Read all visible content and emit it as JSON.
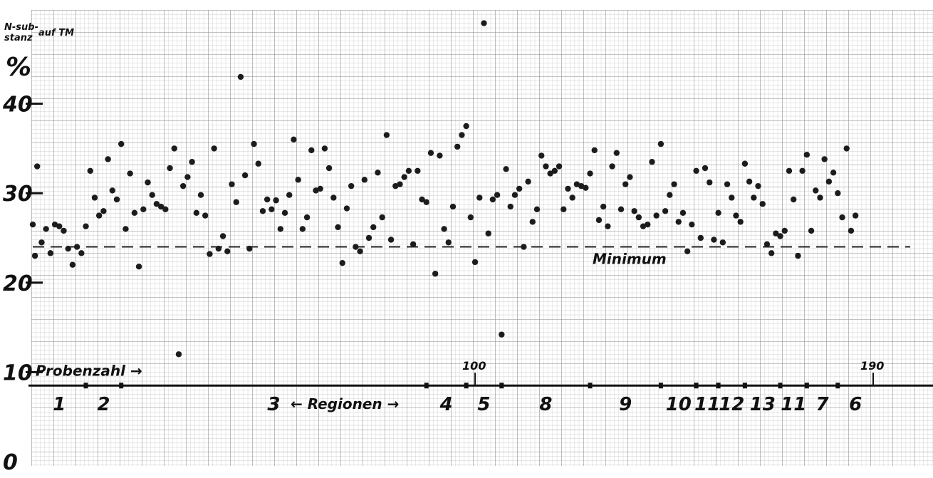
{
  "chart_data": {
    "type": "scatter",
    "ylabel": "N-sub-stanz % auf TM",
    "y_unit": "%",
    "ylim": [
      0,
      50
    ],
    "yticks": [
      {
        "value": 0,
        "label": "0"
      },
      {
        "value": 10,
        "label": "10"
      },
      {
        "value": 20,
        "label": "20"
      },
      {
        "value": 30,
        "label": "30"
      },
      {
        "value": 40,
        "label": "40"
      }
    ],
    "xlabel": "Probenzahl →",
    "xlim": [
      0,
      190
    ],
    "xticks": [
      {
        "value": 100,
        "label": "100"
      },
      {
        "value": 190,
        "label": "190"
      }
    ],
    "minimum": {
      "value": 24.0,
      "label": "Minimum"
    },
    "regions_arrow_label": "← Regionen →",
    "regions": [
      {
        "label": "1",
        "start": 0,
        "end": 12
      },
      {
        "label": "2",
        "start": 12,
        "end": 20
      },
      {
        "label": "3",
        "start": 20,
        "end": 89
      },
      {
        "label": "4",
        "start": 89,
        "end": 98
      },
      {
        "label": "5",
        "start": 98,
        "end": 106
      },
      {
        "label": "8",
        "start": 106,
        "end": 126
      },
      {
        "label": "9",
        "start": 126,
        "end": 142
      },
      {
        "label": "10",
        "start": 142,
        "end": 150
      },
      {
        "label": "11",
        "start": 150,
        "end": 155
      },
      {
        "label": "12",
        "start": 155,
        "end": 161
      },
      {
        "label": "13",
        "start": 161,
        "end": 169
      },
      {
        "label": "11",
        "start": 169,
        "end": 175
      },
      {
        "label": "7",
        "start": 175,
        "end": 182
      },
      {
        "label": "6",
        "start": 182,
        "end": 190
      }
    ],
    "series": [
      {
        "points": [
          [
            0,
            26.5
          ],
          [
            0.5,
            23
          ],
          [
            1,
            33
          ],
          [
            2,
            24.5
          ],
          [
            3,
            26
          ],
          [
            4,
            23.3
          ],
          [
            5,
            26.5
          ],
          [
            6,
            26.3
          ],
          [
            7,
            25.8
          ],
          [
            8,
            23.8
          ],
          [
            9,
            22
          ],
          [
            10,
            24
          ],
          [
            11,
            23.3
          ],
          [
            12,
            26.3
          ],
          [
            13,
            32.5
          ],
          [
            14,
            29.5
          ],
          [
            15,
            27.5
          ],
          [
            16,
            28
          ],
          [
            17,
            33.8
          ],
          [
            18,
            30.3
          ],
          [
            19,
            29.3
          ],
          [
            20,
            35.5
          ],
          [
            21,
            26
          ],
          [
            22,
            32.2
          ],
          [
            23,
            27.8
          ],
          [
            24,
            21.8
          ],
          [
            25,
            28.2
          ],
          [
            26,
            31.2
          ],
          [
            27,
            29.8
          ],
          [
            28,
            28.8
          ],
          [
            29,
            28.5
          ],
          [
            30,
            28.2
          ],
          [
            31,
            32.8
          ],
          [
            32,
            35
          ],
          [
            33,
            12
          ],
          [
            34,
            30.8
          ],
          [
            35,
            31.8
          ],
          [
            36,
            33.5
          ],
          [
            37,
            27.8
          ],
          [
            38,
            29.8
          ],
          [
            39,
            27.5
          ],
          [
            40,
            23.2
          ],
          [
            41,
            35
          ],
          [
            42,
            23.8
          ],
          [
            43,
            25.2
          ],
          [
            44,
            23.5
          ],
          [
            45,
            31
          ],
          [
            46,
            29
          ],
          [
            47,
            43
          ],
          [
            48,
            32
          ],
          [
            49,
            23.8
          ],
          [
            50,
            35.5
          ],
          [
            51,
            33.3
          ],
          [
            52,
            28
          ],
          [
            53,
            29.3
          ],
          [
            54,
            28.2
          ],
          [
            55,
            29.2
          ],
          [
            56,
            26
          ],
          [
            57,
            27.8
          ],
          [
            58,
            29.8
          ],
          [
            59,
            36
          ],
          [
            60,
            31.5
          ],
          [
            61,
            26
          ],
          [
            62,
            27.3
          ],
          [
            63,
            34.8
          ],
          [
            64,
            30.3
          ],
          [
            65,
            30.5
          ],
          [
            66,
            35
          ],
          [
            67,
            32.8
          ],
          [
            68,
            29.5
          ],
          [
            69,
            26.2
          ],
          [
            70,
            22.2
          ],
          [
            71,
            28.3
          ],
          [
            72,
            30.8
          ],
          [
            73,
            24
          ],
          [
            74,
            23.5
          ],
          [
            75,
            31.5
          ],
          [
            76,
            25
          ],
          [
            77,
            26.2
          ],
          [
            78,
            32.3
          ],
          [
            79,
            27.3
          ],
          [
            80,
            36.5
          ],
          [
            81,
            24.8
          ],
          [
            82,
            30.8
          ],
          [
            83,
            31
          ],
          [
            84,
            31.8
          ],
          [
            85,
            32.5
          ],
          [
            86,
            24.3
          ],
          [
            87,
            32.5
          ],
          [
            88,
            29.3
          ],
          [
            89,
            29
          ],
          [
            90,
            34.5
          ],
          [
            91,
            21
          ],
          [
            92,
            34.2
          ],
          [
            93,
            26
          ],
          [
            94,
            24.5
          ],
          [
            95,
            28.5
          ],
          [
            96,
            35.2
          ],
          [
            97,
            36.5
          ],
          [
            98,
            37.5
          ],
          [
            99,
            27.3
          ],
          [
            100,
            22.3
          ],
          [
            101,
            29.5
          ],
          [
            102,
            49
          ],
          [
            103,
            25.5
          ],
          [
            104,
            29.3
          ],
          [
            105,
            29.8
          ],
          [
            106,
            14.2
          ],
          [
            107,
            32.7
          ],
          [
            108,
            28.5
          ],
          [
            109,
            29.8
          ],
          [
            110,
            30.5
          ],
          [
            111,
            24
          ],
          [
            112,
            31.3
          ],
          [
            113,
            26.8
          ],
          [
            114,
            28.2
          ],
          [
            115,
            34.2
          ],
          [
            116,
            33
          ],
          [
            117,
            32.2
          ],
          [
            118,
            32.5
          ],
          [
            119,
            33
          ],
          [
            120,
            28.2
          ],
          [
            121,
            30.5
          ],
          [
            122,
            29.5
          ],
          [
            123,
            31
          ],
          [
            124,
            30.8
          ],
          [
            125,
            30.6
          ],
          [
            126,
            32.2
          ],
          [
            127,
            34.8
          ],
          [
            128,
            27
          ],
          [
            129,
            28.5
          ],
          [
            130,
            26.3
          ],
          [
            131,
            33
          ],
          [
            132,
            34.5
          ],
          [
            133,
            28.2
          ],
          [
            134,
            31
          ],
          [
            135,
            31.8
          ],
          [
            136,
            28
          ],
          [
            137,
            27.3
          ],
          [
            138,
            26.3
          ],
          [
            139,
            26.5
          ],
          [
            140,
            33.5
          ],
          [
            141,
            27.5
          ],
          [
            142,
            35.5
          ],
          [
            143,
            28
          ],
          [
            144,
            29.8
          ],
          [
            145,
            31
          ],
          [
            146,
            26.8
          ],
          [
            147,
            27.8
          ],
          [
            148,
            23.5
          ],
          [
            149,
            26.5
          ],
          [
            150,
            32.5
          ],
          [
            151,
            25
          ],
          [
            152,
            32.8
          ],
          [
            153,
            31.2
          ],
          [
            154,
            24.8
          ],
          [
            155,
            27.8
          ],
          [
            156,
            24.5
          ],
          [
            157,
            31
          ],
          [
            158,
            29.5
          ],
          [
            159,
            27.5
          ],
          [
            160,
            26.8
          ],
          [
            161,
            33.3
          ],
          [
            162,
            31.3
          ],
          [
            163,
            29.5
          ],
          [
            164,
            30.8
          ],
          [
            165,
            28.8
          ],
          [
            166,
            24.3
          ],
          [
            167,
            23.3
          ],
          [
            168,
            25.5
          ],
          [
            169,
            25.2
          ],
          [
            170,
            25.8
          ],
          [
            171,
            32.5
          ],
          [
            172,
            29.3
          ],
          [
            173,
            23
          ],
          [
            174,
            32.5
          ],
          [
            175,
            34.3
          ],
          [
            176,
            25.8
          ],
          [
            177,
            30.3
          ],
          [
            178,
            29.5
          ],
          [
            179,
            33.8
          ],
          [
            180,
            31.3
          ],
          [
            181,
            32.3
          ],
          [
            182,
            30
          ],
          [
            183,
            27.3
          ],
          [
            184,
            35
          ],
          [
            185,
            25.8
          ],
          [
            186,
            27.5
          ]
        ]
      }
    ]
  }
}
